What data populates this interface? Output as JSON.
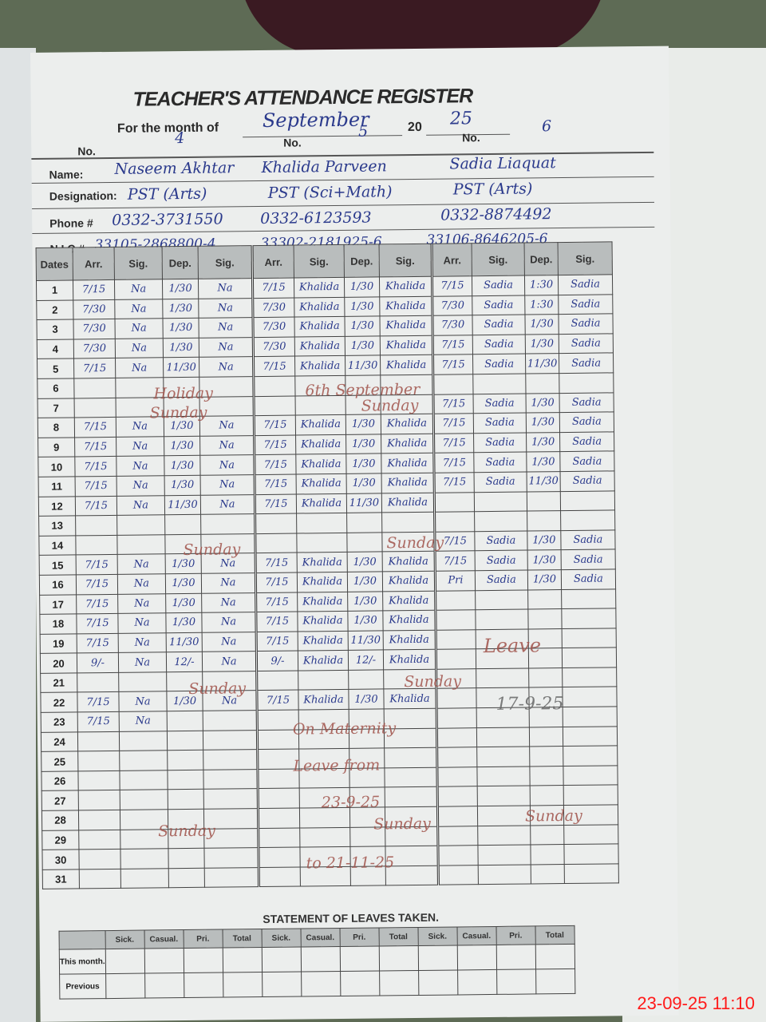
{
  "register": {
    "title": "TEACHER'S ATTENDANCE REGISTER",
    "month_label": "For the month of",
    "month": "September",
    "year_prefix": "20",
    "year": "25",
    "no_label": "No.",
    "name_label": "Name:",
    "designation_label": "Designation:",
    "phone_label": "Phone #",
    "nic_label": "N.I.C #",
    "dates_label": "Dates"
  },
  "teachers": [
    {
      "no": "4",
      "name": "Naseem Akhtar",
      "designation": "PST (Arts)",
      "phone": "0332-3731550",
      "nic": "33105-2868800-4"
    },
    {
      "no": "5",
      "name": "Khalida Parveen",
      "designation": "PST (Sci+Math)",
      "phone": "0332-6123593",
      "nic": "33302-2181925-6"
    },
    {
      "no": "6",
      "name": "Sadia Liaquat",
      "designation": "PST (Arts)",
      "phone": "0332-8874492",
      "nic": "33106-8646205-6"
    }
  ],
  "columns": [
    "Arr.",
    "Sig.",
    "Dep.",
    "Sig."
  ],
  "rows": [
    [
      "7/15",
      "Na",
      "1/30",
      "Na",
      "7/15",
      "Khalida",
      "1/30",
      "Khalida",
      "7/15",
      "Sadia",
      "1:30",
      "Sadia"
    ],
    [
      "7/30",
      "Na",
      "1/30",
      "Na",
      "7/30",
      "Khalida",
      "1/30",
      "Khalida",
      "7/30",
      "Sadia",
      "1:30",
      "Sadia"
    ],
    [
      "7/30",
      "Na",
      "1/30",
      "Na",
      "7/30",
      "Khalida",
      "1/30",
      "Khalida",
      "7/30",
      "Sadia",
      "1/30",
      "Sadia"
    ],
    [
      "7/30",
      "Na",
      "1/30",
      "Na",
      "7/30",
      "Khalida",
      "1/30",
      "Khalida",
      "7/15",
      "Sadia",
      "1/30",
      "Sadia"
    ],
    [
      "7/15",
      "Na",
      "11/30",
      "Na",
      "7/15",
      "Khalida",
      "11/30",
      "Khalida",
      "7/15",
      "Sadia",
      "11/30",
      "Sadia"
    ],
    [
      "",
      "",
      "",
      "",
      "",
      "",
      "",
      "",
      "",
      "",
      "",
      ""
    ],
    [
      "",
      "",
      "",
      "",
      "",
      "",
      "",
      "",
      "7/15",
      "Sadia",
      "1/30",
      "Sadia"
    ],
    [
      "7/15",
      "Na",
      "1/30",
      "Na",
      "7/15",
      "Khalida",
      "1/30",
      "Khalida",
      "7/15",
      "Sadia",
      "1/30",
      "Sadia"
    ],
    [
      "7/15",
      "Na",
      "1/30",
      "Na",
      "7/15",
      "Khalida",
      "1/30",
      "Khalida",
      "7/15",
      "Sadia",
      "1/30",
      "Sadia"
    ],
    [
      "7/15",
      "Na",
      "1/30",
      "Na",
      "7/15",
      "Khalida",
      "1/30",
      "Khalida",
      "7/15",
      "Sadia",
      "1/30",
      "Sadia"
    ],
    [
      "7/15",
      "Na",
      "1/30",
      "Na",
      "7/15",
      "Khalida",
      "1/30",
      "Khalida",
      "7/15",
      "Sadia",
      "11/30",
      "Sadia"
    ],
    [
      "7/15",
      "Na",
      "11/30",
      "Na",
      "7/15",
      "Khalida",
      "11/30",
      "Khalida",
      "",
      "",
      "",
      ""
    ],
    [
      "",
      "",
      "",
      "",
      "",
      "",
      "",
      "",
      "",
      "",
      "",
      ""
    ],
    [
      "",
      "",
      "",
      "",
      "",
      "",
      "",
      "",
      "7/15",
      "Sadia",
      "1/30",
      "Sadia"
    ],
    [
      "7/15",
      "Na",
      "1/30",
      "Na",
      "7/15",
      "Khalida",
      "1/30",
      "Khalida",
      "7/15",
      "Sadia",
      "1/30",
      "Sadia"
    ],
    [
      "7/15",
      "Na",
      "1/30",
      "Na",
      "7/15",
      "Khalida",
      "1/30",
      "Khalida",
      "Pri",
      "Sadia",
      "1/30",
      "Sadia"
    ],
    [
      "7/15",
      "Na",
      "1/30",
      "Na",
      "7/15",
      "Khalida",
      "1/30",
      "Khalida",
      "",
      "",
      "",
      ""
    ],
    [
      "7/15",
      "Na",
      "1/30",
      "Na",
      "7/15",
      "Khalida",
      "1/30",
      "Khalida",
      "",
      "",
      "",
      ""
    ],
    [
      "7/15",
      "Na",
      "11/30",
      "Na",
      "7/15",
      "Khalida",
      "11/30",
      "Khalida",
      "",
      "",
      "",
      ""
    ],
    [
      "9/-",
      "Na",
      "12/-",
      "Na",
      "9/-",
      "Khalida",
      "12/-",
      "Khalida",
      "",
      "",
      "",
      ""
    ],
    [
      "",
      "",
      "",
      "",
      "",
      "",
      "",
      "",
      "",
      "",
      "",
      ""
    ],
    [
      "7/15",
      "Na",
      "1/30",
      "Na",
      "7/15",
      "Khalida",
      "1/30",
      "Khalida",
      "",
      "",
      "",
      ""
    ],
    [
      "7/15",
      "Na",
      "",
      "",
      "",
      "",
      "",
      "",
      "",
      "",
      "",
      ""
    ],
    [
      "",
      "",
      "",
      "",
      "",
      "",
      "",
      "",
      "",
      "",
      "",
      ""
    ],
    [
      "",
      "",
      "",
      "",
      "",
      "",
      "",
      "",
      "",
      "",
      "",
      ""
    ],
    [
      "",
      "",
      "",
      "",
      "",
      "",
      "",
      "",
      "",
      "",
      "",
      ""
    ],
    [
      "",
      "",
      "",
      "",
      "",
      "",
      "",
      "",
      "",
      "",
      "",
      ""
    ],
    [
      "",
      "",
      "",
      "",
      "",
      "",
      "",
      "",
      "",
      "",
      "",
      ""
    ],
    [
      "",
      "",
      "",
      "",
      "",
      "",
      "",
      "",
      "",
      "",
      "",
      ""
    ],
    [
      "",
      "",
      "",
      "",
      "",
      "",
      "",
      "",
      "",
      "",
      "",
      ""
    ],
    [
      "",
      "",
      "",
      "",
      "",
      "",
      "",
      "",
      "",
      "",
      "",
      ""
    ]
  ],
  "annotations": {
    "holiday": "Holiday",
    "holiday_date": "6th September",
    "sunday": "Sunday",
    "maternity_1": "On Maternity",
    "maternity_2": "Leave from",
    "maternity_3": "23-9-25",
    "maternity_4": "to 21-11-25",
    "leave": "Leave",
    "leave_date": "17-9-25"
  },
  "leaves": {
    "title": "STATEMENT OF LEAVES TAKEN.",
    "columns": [
      "Sick.",
      "Casual.",
      "Pri.",
      "Total"
    ],
    "row_labels": [
      "This month.",
      "Previous"
    ]
  },
  "timestamp": "23-09-25  11:10"
}
